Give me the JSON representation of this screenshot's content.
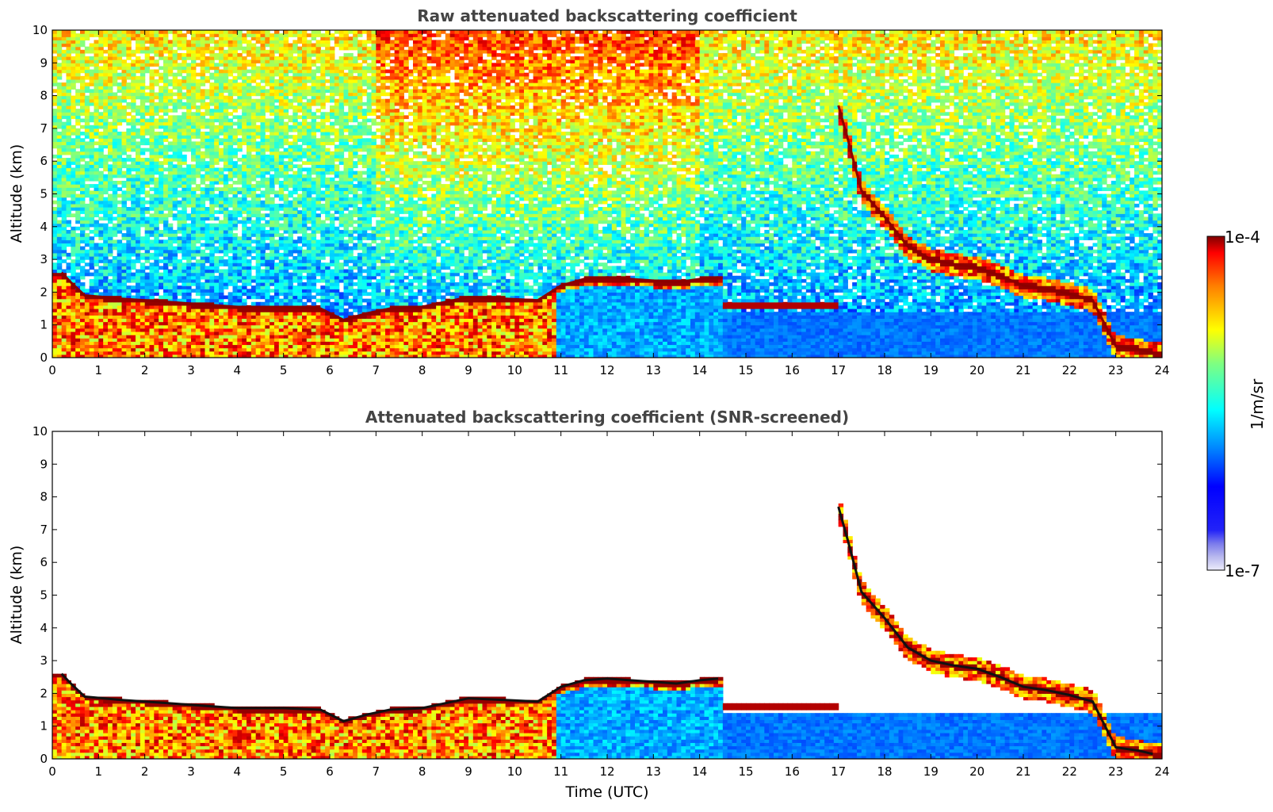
{
  "figure": {
    "xlabel": "Time (UTC)",
    "colorbar": {
      "label": "1/m/sr",
      "top_label": "1e-4",
      "bottom_label": "1e-7",
      "colormap": "jet",
      "min": 1e-07,
      "max": 0.0001,
      "scale": "log",
      "low_end_colors": [
        "#e8e8f8",
        "#c8c8f0",
        "#a8a8e8",
        "#8c8ce8",
        "#6c6cf0",
        "#4848f4"
      ]
    }
  },
  "chart_data": [
    {
      "type": "heatmap",
      "title": "Raw attenuated backscattering coefficient",
      "xlabel": "",
      "ylabel": "Altitude (km)",
      "xlim": [
        0,
        24
      ],
      "ylim": [
        0,
        10
      ],
      "xticks": [
        0,
        1,
        2,
        3,
        4,
        5,
        6,
        7,
        8,
        9,
        10,
        11,
        12,
        13,
        14,
        15,
        16,
        17,
        18,
        19,
        20,
        21,
        22,
        23,
        24
      ],
      "yticks": [
        0,
        1,
        2,
        3,
        4,
        5,
        6,
        7,
        8,
        9,
        10
      ],
      "screened": false,
      "cloud_base_layer": [
        [
          0.2,
          2.6
        ],
        [
          0.4,
          2.3
        ],
        [
          0.7,
          1.9
        ],
        [
          1.5,
          1.8
        ],
        [
          2.5,
          1.7
        ],
        [
          3.0,
          1.65
        ],
        [
          4.0,
          1.55
        ],
        [
          5.0,
          1.55
        ],
        [
          5.8,
          1.5
        ],
        [
          6.3,
          1.15
        ],
        [
          6.8,
          1.35
        ],
        [
          7.3,
          1.5
        ],
        [
          8.0,
          1.55
        ],
        [
          8.5,
          1.7
        ],
        [
          9.0,
          1.85
        ],
        [
          10.5,
          1.75
        ],
        [
          11.0,
          2.2
        ],
        [
          11.5,
          2.4
        ],
        [
          12.0,
          2.45
        ],
        [
          12.5,
          2.4
        ],
        [
          13.0,
          2.35
        ],
        [
          13.5,
          2.3
        ],
        [
          14.0,
          2.4
        ],
        [
          14.4,
          2.45
        ]
      ],
      "elevated_layers": [
        [
          17.0,
          7.7
        ],
        [
          17.2,
          6.7
        ],
        [
          17.5,
          5.1
        ],
        [
          18.0,
          4.3
        ],
        [
          18.5,
          3.4
        ],
        [
          19.0,
          3.0
        ],
        [
          19.5,
          2.85
        ],
        [
          20.0,
          2.75
        ],
        [
          20.5,
          2.5
        ],
        [
          21.0,
          2.2
        ],
        [
          21.5,
          2.1
        ],
        [
          22.0,
          1.95
        ],
        [
          22.5,
          1.75
        ],
        [
          23.0,
          0.35
        ],
        [
          23.5,
          0.25
        ],
        [
          23.8,
          0.15
        ]
      ]
    },
    {
      "type": "heatmap",
      "title": "Attenuated backscattering coefficient (SNR-screened)",
      "xlabel": "Time (UTC)",
      "ylabel": "Altitude (km)",
      "xlim": [
        0,
        24
      ],
      "ylim": [
        0,
        10
      ],
      "xticks": [
        0,
        1,
        2,
        3,
        4,
        5,
        6,
        7,
        8,
        9,
        10,
        11,
        12,
        13,
        14,
        15,
        16,
        17,
        18,
        19,
        20,
        21,
        22,
        23,
        24
      ],
      "yticks": [
        0,
        1,
        2,
        3,
        4,
        5,
        6,
        7,
        8,
        9,
        10
      ],
      "screened": true,
      "cloud_base_layer": [
        [
          0.2,
          2.6
        ],
        [
          0.4,
          2.3
        ],
        [
          0.7,
          1.9
        ],
        [
          1.5,
          1.8
        ],
        [
          2.5,
          1.7
        ],
        [
          3.0,
          1.65
        ],
        [
          4.0,
          1.55
        ],
        [
          5.0,
          1.55
        ],
        [
          5.8,
          1.5
        ],
        [
          6.3,
          1.15
        ],
        [
          6.8,
          1.35
        ],
        [
          7.3,
          1.5
        ],
        [
          8.0,
          1.55
        ],
        [
          8.5,
          1.7
        ],
        [
          9.0,
          1.85
        ],
        [
          10.5,
          1.75
        ],
        [
          11.0,
          2.2
        ],
        [
          11.5,
          2.4
        ],
        [
          12.0,
          2.45
        ],
        [
          12.5,
          2.4
        ],
        [
          13.0,
          2.35
        ],
        [
          13.5,
          2.3
        ],
        [
          14.0,
          2.4
        ],
        [
          14.4,
          2.45
        ]
      ],
      "elevated_layers": [
        [
          17.0,
          7.7
        ],
        [
          17.2,
          6.7
        ],
        [
          17.5,
          5.1
        ],
        [
          18.0,
          4.3
        ],
        [
          18.5,
          3.4
        ],
        [
          19.0,
          3.0
        ],
        [
          19.5,
          2.85
        ],
        [
          20.0,
          2.75
        ],
        [
          20.5,
          2.5
        ],
        [
          21.0,
          2.2
        ],
        [
          21.5,
          2.1
        ],
        [
          22.0,
          1.95
        ],
        [
          22.5,
          1.75
        ],
        [
          23.0,
          0.35
        ],
        [
          23.5,
          0.25
        ],
        [
          23.8,
          0.15
        ]
      ]
    }
  ]
}
